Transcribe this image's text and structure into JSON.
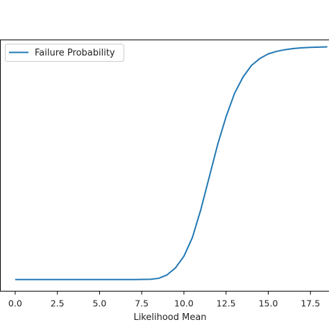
{
  "chart_data": {
    "type": "line",
    "title": "",
    "xlabel": "Likelihood Mean",
    "ylabel": "",
    "xlim": [
      -0.9,
      18.6
    ],
    "ylim": [
      -0.05,
      1.03
    ],
    "xticks": [
      0.0,
      2.5,
      5.0,
      7.5,
      10.0,
      12.5,
      15.0,
      17.5
    ],
    "xtick_labels": [
      "0.0",
      "2.5",
      "5.0",
      "7.5",
      "10.0",
      "12.5",
      "15.0",
      "17.5"
    ],
    "legend_position": "upper-left",
    "grid": false,
    "series": [
      {
        "name": "Failure Probability",
        "color": "#1f77b4",
        "x": [
          0,
          1,
          2,
          3,
          4,
          5,
          6,
          7,
          8,
          8.5,
          9,
          9.5,
          10,
          10.5,
          11,
          11.5,
          12,
          12.5,
          13,
          13.5,
          14,
          14.5,
          15,
          15.5,
          16,
          16.5,
          17,
          17.5,
          18,
          18.5
        ],
        "y": [
          0.0,
          0.0,
          0.0,
          0.0,
          0.0,
          0.0,
          0.0,
          0.0,
          0.001,
          0.005,
          0.02,
          0.05,
          0.1,
          0.18,
          0.3,
          0.44,
          0.58,
          0.7,
          0.8,
          0.87,
          0.92,
          0.95,
          0.97,
          0.981,
          0.988,
          0.993,
          0.996,
          0.998,
          0.999,
          1.0
        ]
      }
    ]
  }
}
